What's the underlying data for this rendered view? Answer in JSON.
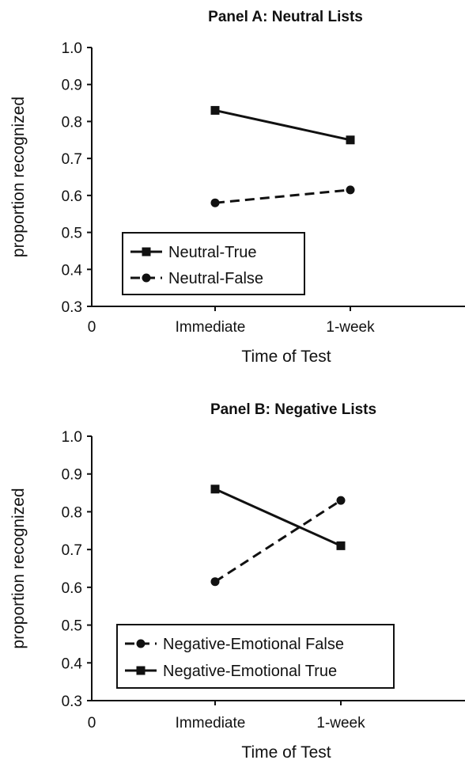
{
  "chart_data": [
    {
      "type": "line",
      "title": "Panel A:  Neutral Lists",
      "xlabel": "Time of Test",
      "ylabel": "proportion recognized",
      "categories": [
        "Immediate",
        "1-week"
      ],
      "x_zero_label": "0",
      "ylim": [
        0.3,
        1.0
      ],
      "yticks": [
        "0.3",
        "0.4",
        "0.5",
        "0.6",
        "0.7",
        "0.8",
        "0.9",
        "1.0"
      ],
      "grid": false,
      "legend_position": "bottom-left",
      "series": [
        {
          "name": "Neutral-True",
          "values": [
            0.83,
            0.75
          ],
          "marker": "square",
          "line": "solid"
        },
        {
          "name": "Neutral-False",
          "values": [
            0.58,
            0.615
          ],
          "marker": "circle",
          "line": "dashed"
        }
      ]
    },
    {
      "type": "line",
      "title": "Panel B:   Negative Lists",
      "xlabel": "Time of Test",
      "ylabel": "proportion recognized",
      "categories": [
        "Immediate",
        "1-week"
      ],
      "x_zero_label": "0",
      "ylim": [
        0.3,
        1.0
      ],
      "yticks": [
        "0.3",
        "0.4",
        "0.5",
        "0.6",
        "0.7",
        "0.8",
        "0.9",
        "1.0"
      ],
      "grid": false,
      "legend_position": "bottom-left",
      "series": [
        {
          "name": "Negative-Emotional False",
          "values": [
            0.615,
            0.83
          ],
          "marker": "circle",
          "line": "dashed"
        },
        {
          "name": "Negative-Emotional True",
          "values": [
            0.86,
            0.71
          ],
          "marker": "square",
          "line": "solid"
        }
      ]
    }
  ]
}
